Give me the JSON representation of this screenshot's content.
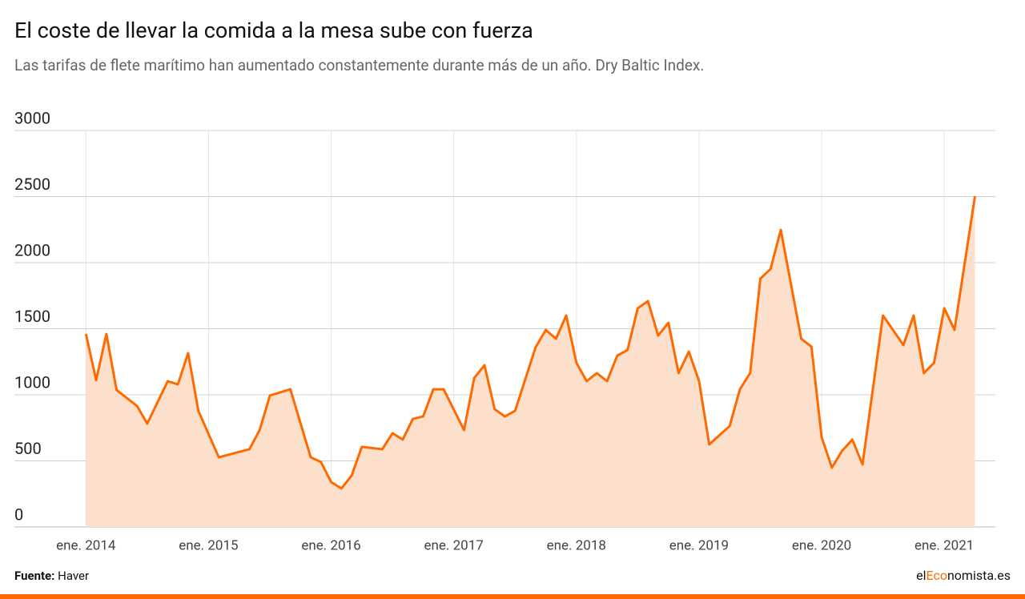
{
  "chart_data": {
    "type": "area",
    "title": "El coste de llevar la comida a la mesa sube con fuerza",
    "subtitle": "Las tarifas de flete marítimo han aumentado constantemente durante más de un año. Dry Baltic Index.",
    "x": [
      "2014-01",
      "2014-02",
      "2014-03",
      "2014-04",
      "2014-06",
      "2014-07",
      "2014-09",
      "2014-10",
      "2014-11",
      "2014-12",
      "2015-02",
      "2015-05",
      "2015-06",
      "2015-07",
      "2015-09",
      "2015-11",
      "2015-12",
      "2016-01",
      "2016-02",
      "2016-03",
      "2016-04",
      "2016-06",
      "2016-07",
      "2016-08",
      "2016-09",
      "2016-10",
      "2016-11",
      "2016-12",
      "2017-02",
      "2017-03",
      "2017-04",
      "2017-05",
      "2017-06",
      "2017-07",
      "2017-09",
      "2017-10",
      "2017-11",
      "2017-12",
      "2018-01",
      "2018-02",
      "2018-03",
      "2018-04",
      "2018-05",
      "2018-06",
      "2018-07",
      "2018-08",
      "2018-09",
      "2018-10",
      "2018-11",
      "2018-12",
      "2019-01",
      "2019-02",
      "2019-04",
      "2019-05",
      "2019-06",
      "2019-07",
      "2019-08",
      "2019-09",
      "2019-11",
      "2019-12",
      "2020-01",
      "2020-02",
      "2020-03",
      "2020-04",
      "2020-05",
      "2020-07",
      "2020-09",
      "2020-10",
      "2020-11",
      "2020-12",
      "2021-01",
      "2021-02",
      "2021-04"
    ],
    "values": [
      1460,
      1110,
      1460,
      1036,
      915,
      782,
      1103,
      1079,
      1315,
      879,
      527,
      588,
      733,
      994,
      1042,
      527,
      491,
      339,
      291,
      388,
      606,
      588,
      709,
      661,
      818,
      836,
      1042,
      1042,
      733,
      1127,
      1224,
      891,
      836,
      879,
      1358,
      1491,
      1424,
      1600,
      1242,
      1103,
      1164,
      1103,
      1297,
      1339,
      1655,
      1709,
      1448,
      1545,
      1164,
      1327,
      1103,
      624,
      764,
      1042,
      1164,
      1879,
      1952,
      2248,
      1424,
      1364,
      679,
      448,
      576,
      661,
      473,
      1600,
      1376,
      1600,
      1164,
      1242,
      1655,
      1491,
      2503
    ],
    "color": "#ff6a00",
    "area_color": "#fde0cc",
    "xlim": [
      "2013-06",
      "2021-06"
    ],
    "xticks": [
      {
        "value": "2014-01",
        "label": "ene. 2014"
      },
      {
        "value": "2015-01",
        "label": "ene. 2015"
      },
      {
        "value": "2016-01",
        "label": "ene. 2016"
      },
      {
        "value": "2017-01",
        "label": "ene. 2017"
      },
      {
        "value": "2018-01",
        "label": "ene. 2018"
      },
      {
        "value": "2019-01",
        "label": "ene. 2019"
      },
      {
        "value": "2020-01",
        "label": "ene. 2020"
      },
      {
        "value": "2021-01",
        "label": "ene. 2021"
      }
    ],
    "ylim": [
      0,
      3000
    ],
    "yticks": [
      0,
      500,
      1000,
      1500,
      2000,
      2500,
      3000
    ],
    "grid": true,
    "source_label": "Fuente:",
    "source": "Haver",
    "brand": [
      "el",
      "Eco",
      "nomista.es"
    ]
  }
}
